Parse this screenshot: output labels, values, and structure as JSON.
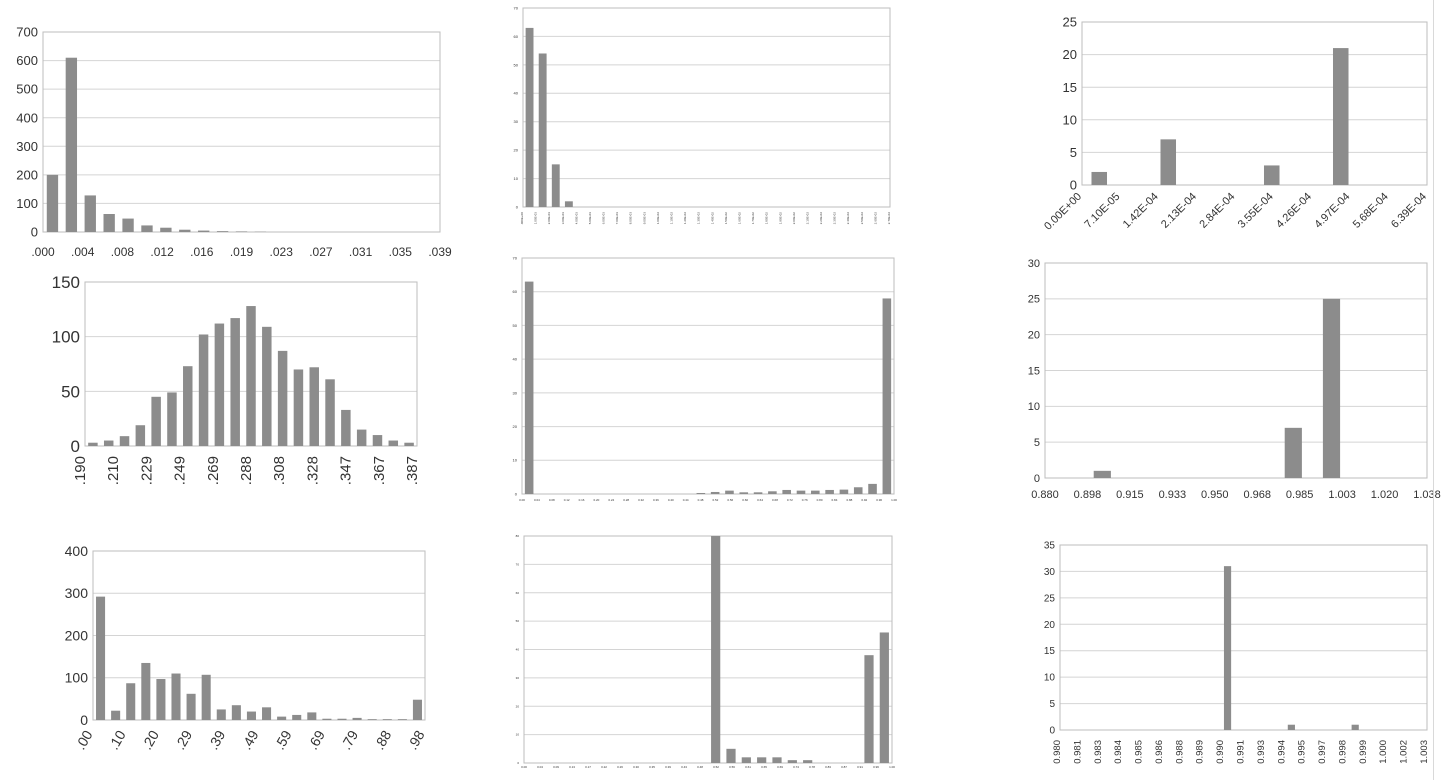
{
  "chart_data": [
    {
      "type": "bar",
      "ylim": [
        0,
        700
      ],
      "yticks": [
        "0",
        "100",
        "200",
        "300",
        "400",
        "500",
        "600",
        "700"
      ],
      "values": [
        200,
        610,
        128,
        63,
        47,
        23,
        15,
        8,
        5,
        3,
        2,
        1,
        0,
        0,
        0,
        0,
        0,
        0,
        0,
        0,
        0
      ],
      "xtick_labels": [
        ".000",
        ".004",
        ".008",
        ".012",
        ".016",
        ".019",
        ".023",
        ".027",
        ".031",
        ".035",
        ".039"
      ]
    },
    {
      "type": "bar",
      "ylim": [
        0,
        70
      ],
      "yticks": [
        "0",
        "10",
        "20",
        "30",
        "40",
        "50",
        "60",
        "70"
      ],
      "values": [
        63,
        54,
        15,
        2,
        0,
        0,
        0,
        0,
        0,
        0,
        0,
        0,
        0,
        0,
        0,
        0,
        0,
        0,
        0,
        0,
        0,
        0,
        0,
        0,
        0,
        0,
        0,
        0
      ],
      "xtick_labels": [
        ".000E+00",
        "1.00E-03",
        "2.00E-03",
        "3.00E-03",
        "4.00E-03",
        "5.00E-03",
        "6.00E-03",
        "7.00E-03",
        "8.00E-03",
        "9.00E-03",
        "1.00E-02",
        "1.10E-02",
        "1.20E-02",
        "1.30E-02",
        "1.40E-02",
        "1.50E-02",
        "1.60E-02",
        "1.70E-02",
        "1.80E-02",
        "1.90E-02",
        "2.00E-02",
        "2.10E-02",
        "2.20E-02",
        "2.30E-02",
        "2.40E-02",
        "2.50E-02",
        "2.60E-02",
        "2.70E-02"
      ]
    },
    {
      "type": "bar",
      "ylim": [
        0,
        25
      ],
      "yticks": [
        "0",
        "5",
        "10",
        "15",
        "20",
        "25"
      ],
      "values": [
        2,
        0,
        7,
        0,
        0,
        3,
        0,
        21,
        0,
        0
      ],
      "xtick_labels": [
        "0.00E+00",
        "7.10E-05",
        "1.42E-04",
        "2.13E-04",
        "2.84E-04",
        "3.55E-04",
        "4.26E-04",
        "4.97E-04",
        "5.68E-04",
        "6.39E-04"
      ]
    },
    {
      "type": "bar",
      "ylim": [
        0,
        150
      ],
      "yticks": [
        "0",
        "50",
        "100",
        "150"
      ],
      "values": [
        3,
        5,
        9,
        19,
        45,
        49,
        73,
        102,
        112,
        117,
        128,
        109,
        87,
        70,
        72,
        61,
        33,
        15,
        10,
        5,
        3
      ],
      "xtick_labels": [
        ".190",
        ".210",
        ".229",
        ".249",
        ".269",
        ".288",
        ".308",
        ".328",
        ".347",
        ".367",
        ".387"
      ]
    },
    {
      "type": "bar",
      "ylim": [
        0,
        70
      ],
      "yticks": [
        "0",
        "10",
        "20",
        "30",
        "40",
        "50",
        "60",
        "70"
      ],
      "values": [
        63,
        0,
        0,
        0,
        0,
        0,
        0,
        0,
        0,
        0,
        0,
        0,
        0.3,
        0.6,
        1,
        0.5,
        0.5,
        0.8,
        1.2,
        1,
        1,
        1.2,
        1.3,
        2,
        3,
        58
      ],
      "xtick_labels": [
        "0.00",
        "0.04",
        "0.08",
        "0.12",
        "0.16",
        "0.20",
        "0.24",
        "0.28",
        "0.32",
        "0.36",
        "0.40",
        "0.44",
        "0.48",
        "0.52",
        "0.56",
        "0.60",
        "0.64",
        "0.68",
        "0.72",
        "0.76",
        "0.80",
        "0.84",
        "0.88",
        "0.92",
        "0.96",
        "1.00"
      ]
    },
    {
      "type": "bar",
      "ylim": [
        0,
        30
      ],
      "yticks": [
        "0",
        "5",
        "10",
        "15",
        "20",
        "25",
        "30"
      ],
      "values": [
        0,
        1,
        0,
        0,
        0,
        0,
        7,
        25,
        0,
        0
      ],
      "xtick_labels": [
        "0.880",
        "0.898",
        "0.915",
        "0.933",
        "0.950",
        "0.968",
        "0.985",
        "1.003",
        "1.020",
        "1.038"
      ]
    },
    {
      "type": "bar",
      "ylim": [
        0,
        400
      ],
      "yticks": [
        "0",
        "100",
        "200",
        "300",
        "400"
      ],
      "values": [
        292,
        22,
        87,
        135,
        97,
        110,
        62,
        107,
        25,
        35,
        20,
        30,
        8,
        12,
        18,
        3,
        3,
        5,
        2,
        2,
        2,
        48
      ],
      "xtick_labels": [
        ".00",
        ".10",
        ".20",
        ".29",
        ".39",
        ".49",
        ".59",
        ".69",
        ".79",
        ".88",
        ".98"
      ]
    },
    {
      "type": "bar",
      "ylim": [
        0,
        80
      ],
      "yticks": [
        "0",
        "10",
        "20",
        "30",
        "40",
        "50",
        "60",
        "70",
        "80"
      ],
      "values": [
        0,
        0,
        0,
        0,
        0,
        0,
        0,
        0,
        0,
        0,
        0,
        0,
        80,
        5,
        2,
        2,
        2,
        1,
        1,
        0,
        0,
        0,
        38,
        46
      ],
      "xtick_labels": [
        "0.00",
        "0.04",
        "0.09",
        "0.13",
        "0.17",
        "0.22",
        "0.26",
        "0.30",
        "0.35",
        "0.39",
        "0.43",
        "0.48",
        "0.52",
        "0.56",
        "0.61",
        "0.65",
        "0.69",
        "0.74",
        "0.78",
        "0.83",
        "0.87",
        "0.91",
        "0.96",
        "1.00"
      ]
    },
    {
      "type": "bar",
      "ylim": [
        0,
        35
      ],
      "yticks": [
        "0",
        "5",
        "10",
        "15",
        "20",
        "25",
        "30",
        "35"
      ],
      "values": [
        0,
        0,
        0,
        0,
        0,
        0,
        0,
        0,
        0,
        0,
        31,
        0,
        0,
        0,
        1,
        0,
        0,
        0,
        1,
        0,
        0,
        0,
        0
      ],
      "xtick_labels": [
        "0.980",
        "0.981",
        "0.983",
        "0.984",
        "0.985",
        "0.986",
        "0.988",
        "0.989",
        "0.990",
        "0.991",
        "0.993",
        "0.994",
        "0.995",
        "0.997",
        "0.998",
        "0.999",
        "1.000",
        "1.002",
        "1.003"
      ]
    }
  ]
}
